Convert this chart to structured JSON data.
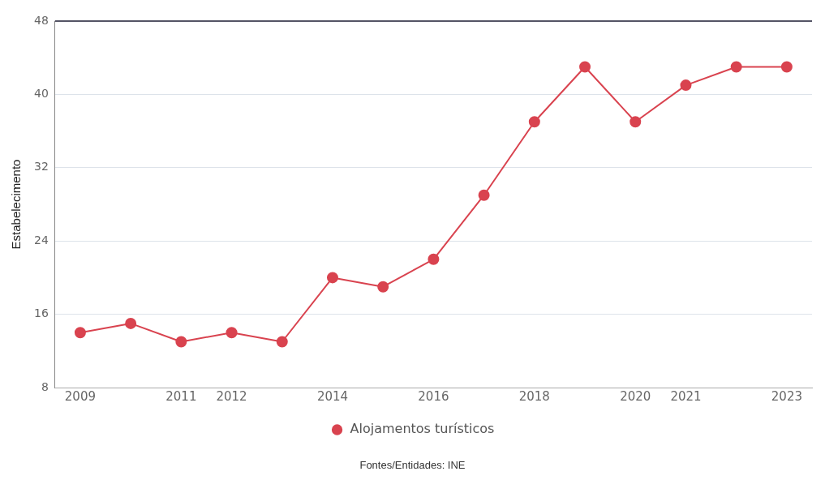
{
  "chart_data": {
    "type": "line",
    "ylabel": "Estabelecimento",
    "categories": [
      "2009",
      null,
      "2011",
      "2012",
      null,
      "2014",
      null,
      "2016",
      null,
      "2018",
      null,
      "2020",
      "2021",
      null,
      "2023"
    ],
    "series": [
      {
        "name": "Alojamentos turísticos",
        "color": "#d9434f",
        "values": [
          14,
          15,
          13,
          14,
          13,
          20,
          19,
          22,
          29,
          37,
          43,
          37,
          41,
          43,
          43
        ]
      }
    ],
    "ylim": [
      8,
      48
    ],
    "yticks": [
      8,
      16,
      24,
      32,
      40,
      48
    ],
    "grid": "y",
    "legend": "bottom",
    "marker": "circle",
    "line_style": "solid",
    "annotations": [
      "Fontes/Entidades: INE"
    ]
  }
}
